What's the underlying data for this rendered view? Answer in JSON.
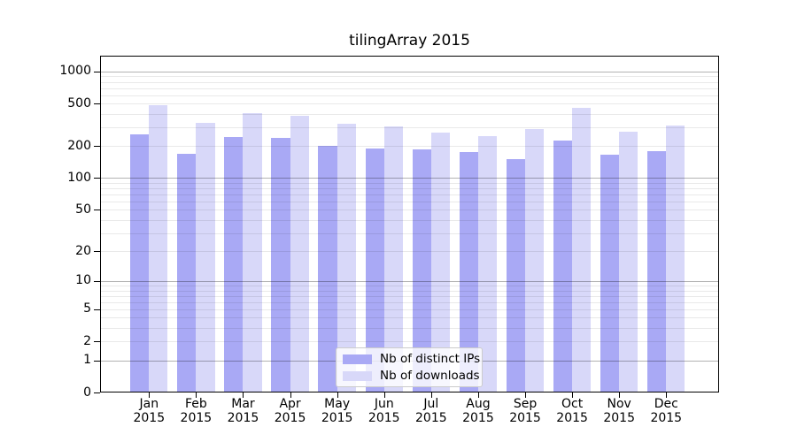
{
  "title": "tilingArray 2015",
  "chart_data": {
    "type": "bar",
    "title": "tilingArray 2015",
    "xlabel": "",
    "ylabel": "",
    "categories": [
      "Jan",
      "Feb",
      "Mar",
      "Apr",
      "May",
      "Jun",
      "Jul",
      "Aug",
      "Sep",
      "Oct",
      "Nov",
      "Dec"
    ],
    "x_year_label": "2015",
    "series": [
      {
        "name": "Nb of distinct IPs",
        "color": "#a9a9f5",
        "values": [
          259,
          170,
          244,
          240,
          201,
          189,
          186,
          177,
          151,
          224,
          165,
          179
        ]
      },
      {
        "name": "Nb of downloads",
        "color": "#d8d8f9",
        "values": [
          480,
          330,
          410,
          388,
          324,
          308,
          268,
          248,
          288,
          456,
          273,
          312
        ]
      }
    ],
    "y_ticks": [
      1000,
      500,
      200,
      100,
      50,
      20,
      10,
      5,
      2,
      1,
      0
    ],
    "scale": "log1p",
    "ylim": [
      0,
      1408
    ],
    "grid": "on",
    "legend_position": "bottom-center"
  }
}
